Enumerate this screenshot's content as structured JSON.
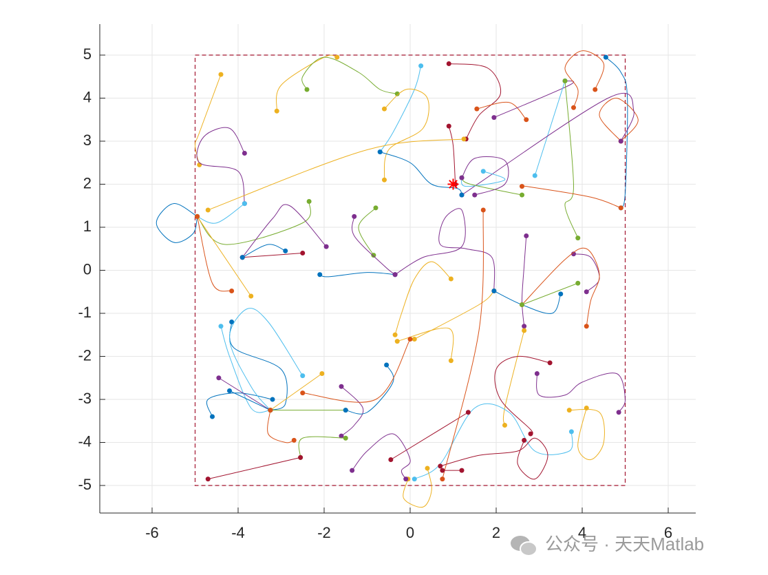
{
  "chart_data": {
    "type": "line",
    "xlim": [
      -7.216,
      6.64
    ],
    "ylim": [
      -5.64,
      5.72
    ],
    "xticks": [
      -6,
      -4,
      -2,
      0,
      2,
      4,
      6
    ],
    "yticks": [
      -5,
      -4,
      -3,
      -2,
      -1,
      0,
      1,
      2,
      3,
      4,
      5
    ],
    "grid": true,
    "boundary": {
      "x": [
        -5,
        5
      ],
      "y": [
        -5,
        5
      ],
      "color": "#A2142F"
    },
    "target": {
      "x": 1,
      "y": 2,
      "color": "#FF0000"
    },
    "watermark": "公众号 · 天天Matlab",
    "series": [
      {
        "color": "#EDB120",
        "x": [
          -4.4,
          -4.9,
          -5,
          -4.9
        ],
        "y": [
          4.55,
          3.2,
          2.9,
          2.45
        ]
      },
      {
        "color": "#7E2F8E",
        "x": [
          -3.85,
          -4.2,
          -4.8,
          -4.9,
          -4,
          -3.85
        ],
        "y": [
          2.72,
          3.3,
          3.1,
          2.5,
          2.3,
          1.55
        ]
      },
      {
        "color": "#EDB120",
        "x": [
          -3.1,
          -3,
          -2,
          -1.7
        ],
        "y": [
          3.7,
          4.3,
          4.95,
          4.95
        ]
      },
      {
        "color": "#77AC30",
        "x": [
          -2.4,
          -2.5,
          -2,
          -1.2,
          -0.7,
          -0.3
        ],
        "y": [
          4.2,
          4.5,
          4.95,
          4.6,
          4.2,
          4.1
        ]
      },
      {
        "color": "#4DBEEE",
        "x": [
          0.25,
          0.1,
          -0.4,
          -0.7
        ],
        "y": [
          4.75,
          4.2,
          3.2,
          2.75
        ]
      },
      {
        "color": "#A2142F",
        "x": [
          0.9,
          1.8,
          2.1,
          1.6,
          1.3
        ],
        "y": [
          4.8,
          4.7,
          4.1,
          3.6,
          3.05
        ]
      },
      {
        "color": "#EDB120",
        "x": [
          -0.6,
          -0.1,
          0.4,
          0.3,
          -0.5,
          -0.6
        ],
        "y": [
          3.75,
          4.2,
          4.0,
          3.3,
          2.8,
          2.1
        ]
      },
      {
        "color": "#D95319",
        "x": [
          1.55,
          2.3,
          2.7
        ],
        "y": [
          3.75,
          3.9,
          3.5
        ]
      },
      {
        "color": "#7E2F8E",
        "x": [
          1.95,
          3.7,
          3.6
        ],
        "y": [
          3.55,
          4.3,
          4.4
        ]
      },
      {
        "color": "#4DBEEE",
        "x": [
          3.6,
          2.9
        ],
        "y": [
          4.4,
          2.2
        ]
      },
      {
        "color": "#77AC30",
        "x": [
          3.6,
          3.8,
          3.6,
          3.9
        ],
        "y": [
          4.4,
          1.95,
          1.5,
          0.75
        ]
      },
      {
        "color": "#D95319",
        "x": [
          4.3,
          4.5,
          4,
          3.6,
          3.9,
          3.8
        ],
        "y": [
          4.2,
          4.8,
          5.1,
          4.7,
          4.2,
          3.78
        ]
      },
      {
        "color": "#0072BD",
        "x": [
          4.55,
          4.9,
          5.05,
          5,
          4.9
        ],
        "y": [
          4.95,
          4.6,
          4,
          1.8,
          1.45
        ]
      },
      {
        "color": "#D95319",
        "x": [
          4.9,
          4.4,
          4.8,
          5.3,
          4.9
        ],
        "y": [
          3.0,
          3.6,
          4,
          3.5,
          3.0
        ]
      },
      {
        "color": "#7E2F8E",
        "x": [
          1.2,
          4.6,
          5.2,
          4.9
        ],
        "y": [
          1.75,
          4.0,
          3.7,
          3.0
        ]
      },
      {
        "color": "#D95319",
        "x": [
          4.9,
          4.2,
          2.7,
          2.6
        ],
        "y": [
          1.45,
          1.7,
          1.95,
          1.95
        ]
      },
      {
        "color": "#4DBEEE",
        "x": [
          1.7,
          2.2,
          1.3,
          1.2
        ],
        "y": [
          2.3,
          2.1,
          1.95,
          2.15
        ]
      },
      {
        "color": "#77AC30",
        "x": [
          2.6,
          1.4,
          1.2
        ],
        "y": [
          1.75,
          2.0,
          2.15
        ]
      },
      {
        "color": "#7E2F8E",
        "x": [
          1.2,
          1.5,
          2.2,
          2.2,
          1.5
        ],
        "y": [
          2.15,
          2.6,
          2.55,
          2.0,
          1.75
        ]
      },
      {
        "color": "#A2142F",
        "x": [
          0.9,
          1.0,
          1.05
        ],
        "y": [
          3.35,
          2.9,
          2.0
        ]
      },
      {
        "color": "#EDB120",
        "x": [
          -4.7,
          -1,
          1.25
        ],
        "y": [
          1.4,
          2.8,
          3.05
        ]
      },
      {
        "color": "#0072BD",
        "x": [
          -0.7,
          0,
          0.5,
          1.1,
          1.2
        ],
        "y": [
          2.75,
          2.5,
          2.0,
          1.9,
          1.75
        ]
      },
      {
        "color": "#0072BD",
        "x": [
          -4.95,
          -5.5,
          -5.9,
          -5.5,
          -5.05,
          -4.95
        ],
        "y": [
          1.25,
          1.55,
          1.1,
          0.65,
          0.85,
          1.25
        ]
      },
      {
        "color": "#4DBEEE",
        "x": [
          -3.85,
          -4.5,
          -4.95
        ],
        "y": [
          1.55,
          1.1,
          1.25
        ]
      },
      {
        "color": "#77AC30",
        "x": [
          -2.35,
          -2.5,
          -4.3,
          -4.95
        ],
        "y": [
          1.6,
          1.1,
          0.6,
          1.25
        ]
      },
      {
        "color": "#EDB120",
        "x": [
          -4.95,
          -3.7
        ],
        "y": [
          1.25,
          -0.6
        ]
      },
      {
        "color": "#D95319",
        "x": [
          -4.95,
          -4.6,
          -4.15
        ],
        "y": [
          1.25,
          -0.3,
          -0.48
        ]
      },
      {
        "color": "#7E2F8E",
        "x": [
          -1.95,
          -2.8,
          -3.2,
          -3.9
        ],
        "y": [
          0.55,
          1.5,
          1.2,
          0.3
        ]
      },
      {
        "color": "#A2142F",
        "x": [
          -3.9,
          -2.5
        ],
        "y": [
          0.3,
          0.4
        ]
      },
      {
        "color": "#0072BD",
        "x": [
          -2.9,
          -3.3,
          -3.9
        ],
        "y": [
          0.45,
          0.6,
          0.3
        ]
      },
      {
        "color": "#77AC30",
        "x": [
          -0.8,
          -1.2,
          -0.85
        ],
        "y": [
          1.45,
          1.0,
          0.35
        ]
      },
      {
        "color": "#7E2F8E",
        "x": [
          -1.3,
          -1.3,
          -0.6,
          -0.35
        ],
        "y": [
          1.25,
          0.8,
          0.1,
          -0.1
        ]
      },
      {
        "color": "#0072BD",
        "x": [
          -2.1,
          -1.9,
          -1,
          -0.35
        ],
        "y": [
          -0.1,
          -0.15,
          -0.05,
          -0.1
        ]
      },
      {
        "color": "#7E2F8E",
        "x": [
          -0.35,
          0.3,
          1.2,
          1.2,
          0.8,
          0.7,
          1.3,
          1.9,
          1.95
        ],
        "y": [
          -0.1,
          0.3,
          0.55,
          1.4,
          1.2,
          0.6,
          0.5,
          0.3,
          -0.48
        ]
      },
      {
        "color": "#EDB120",
        "x": [
          1.95,
          1.6,
          0.1
        ],
        "y": [
          -0.48,
          -0.8,
          -1.6
        ]
      },
      {
        "color": "#EDB120",
        "x": [
          0.95,
          0.5,
          0.1,
          -0.2,
          -0.35
        ],
        "y": [
          -0.2,
          0.2,
          -0.2,
          -1.0,
          -1.5
        ]
      },
      {
        "color": "#EDB120",
        "x": [
          -0.3,
          0.9,
          0.95
        ],
        "y": [
          -1.65,
          -1.35,
          -2.1
        ]
      },
      {
        "color": "#7E2F8E",
        "x": [
          2.7,
          2.65,
          2.6,
          2.65
        ],
        "y": [
          0.8,
          0.1,
          -0.7,
          -1.3
        ]
      },
      {
        "color": "#7E2F8E",
        "x": [
          3.8,
          4.2,
          4.4,
          4.1
        ],
        "y": [
          0.38,
          0.3,
          -0.2,
          -0.5
        ]
      },
      {
        "color": "#D95319",
        "x": [
          4.1,
          4.2,
          4.4,
          4.1,
          3.6,
          2.6
        ],
        "y": [
          -1.3,
          -0.7,
          -0.1,
          0.5,
          0.25,
          -0.8
        ]
      },
      {
        "color": "#0072BD",
        "x": [
          1.95,
          2.6,
          3.3,
          3.5
        ],
        "y": [
          -0.48,
          -0.8,
          -1.0,
          -0.55
        ]
      },
      {
        "color": "#77AC30",
        "x": [
          3.9,
          2.6
        ],
        "y": [
          -0.3,
          -0.8
        ]
      },
      {
        "color": "#EDB120",
        "x": [
          2.65,
          2.2,
          2.2
        ],
        "y": [
          -1.4,
          -3.2,
          -3.6
        ]
      },
      {
        "color": "#7E2F8E",
        "x": [
          2.95,
          3,
          3.6,
          4,
          4.8,
          5,
          4.85
        ],
        "y": [
          -2.4,
          -2.9,
          -2.9,
          -2.6,
          -2.4,
          -3,
          -3.3
        ]
      },
      {
        "color": "#A2142F",
        "x": [
          3.25,
          2.5,
          2.0,
          2.1,
          2.8,
          2.8
        ],
        "y": [
          -2.15,
          -2,
          -2.3,
          -3.0,
          -3.7,
          -3.8
        ]
      },
      {
        "color": "#EDB120",
        "x": [
          3.7,
          4.4,
          4.5,
          4.2,
          3.9,
          4.1
        ],
        "y": [
          -3.25,
          -3.3,
          -4.0,
          -4.4,
          -4.1,
          -3.2
        ]
      },
      {
        "color": "#4DBEEE",
        "x": [
          0.1,
          0.7,
          1.5,
          2.3,
          2.9,
          3.7,
          3.75
        ],
        "y": [
          -4.85,
          -4.5,
          -3.2,
          -3.3,
          -4.2,
          -4.2,
          -3.75
        ]
      },
      {
        "color": "#A2142F",
        "x": [
          0.7,
          1.6,
          2.5,
          2.9,
          3.2,
          2.9,
          2.5,
          2.65
        ],
        "y": [
          -4.55,
          -4.3,
          -4.2,
          -3.9,
          -4.3,
          -4.85,
          -4.5,
          -3.95
        ]
      },
      {
        "color": "#A2142F",
        "x": [
          -0.45,
          1.35
        ],
        "y": [
          -4.4,
          -3.3
        ]
      },
      {
        "color": "#EDB120",
        "x": [
          -0.05,
          -0.15,
          0.3,
          0.5,
          0.4
        ],
        "y": [
          -4.85,
          -5.3,
          -5.5,
          -5.1,
          -4.6
        ]
      },
      {
        "color": "#7E2F8E",
        "x": [
          -1.35,
          -1,
          -0.4,
          0,
          -0.2,
          -0.1
        ],
        "y": [
          -4.65,
          -4.2,
          -3.8,
          -4.4,
          -4.65,
          -4.85
        ]
      },
      {
        "color": "#D95319",
        "x": [
          0.75,
          1.6,
          1.7
        ],
        "y": [
          -4.85,
          -1.4,
          1.4
        ]
      },
      {
        "color": "#A2142F",
        "x": [
          0.75,
          1.2
        ],
        "y": [
          -4.65,
          -4.65
        ]
      },
      {
        "color": "#0072BD",
        "x": [
          -4.6,
          -4.7,
          -4.0,
          -3.2
        ],
        "y": [
          -3.4,
          -3.0,
          -2.85,
          -3.0
        ]
      },
      {
        "color": "#0072BD",
        "x": [
          -4.15,
          -4.1,
          -3.0,
          -2.9,
          -3.25
        ],
        "y": [
          -1.2,
          -1.8,
          -2.3,
          -3.1,
          -3.25
        ]
      },
      {
        "color": "#4DBEEE",
        "x": [
          -4.4,
          -4.2,
          -3.7,
          -3.25
        ],
        "y": [
          -1.3,
          -2.0,
          -3.2,
          -3.25
        ]
      },
      {
        "color": "#4DBEEE",
        "x": [
          -2.5,
          -3.3,
          -3.8,
          -4.2,
          -3.7,
          -3.25
        ],
        "y": [
          -2.45,
          -1.2,
          -0.9,
          -1.6,
          -2.7,
          -3.25
        ]
      },
      {
        "color": "#7E2F8E",
        "x": [
          -4.45,
          -3.25
        ],
        "y": [
          -2.5,
          -3.25
        ]
      },
      {
        "color": "#0072BD",
        "x": [
          -4.2,
          -3.25
        ],
        "y": [
          -2.8,
          -3.25
        ]
      },
      {
        "color": "#EDB120",
        "x": [
          -3.25,
          -2.05
        ],
        "y": [
          -3.25,
          -2.4
        ]
      },
      {
        "color": "#7E2F8E",
        "x": [
          -1.6,
          -1.1,
          -1.3,
          -1.6
        ],
        "y": [
          -2.7,
          -3.2,
          -3.6,
          -3.85
        ]
      },
      {
        "color": "#77AC30",
        "x": [
          -3.25,
          -1.5
        ],
        "y": [
          -3.25,
          -3.25
        ]
      },
      {
        "color": "#D95319",
        "x": [
          -3.25,
          -3.3,
          -2.9,
          -2.7
        ],
        "y": [
          -3.25,
          -3.8,
          -4.0,
          -3.95
        ]
      },
      {
        "color": "#77AC30",
        "x": [
          -2.55,
          -2.5,
          -1.5
        ],
        "y": [
          -4.35,
          -3.9,
          -3.9
        ]
      },
      {
        "color": "#A2142F",
        "x": [
          -4.7,
          -2.55
        ],
        "y": [
          -4.85,
          -4.35
        ]
      },
      {
        "color": "#0072BD",
        "x": [
          -0.55,
          -0.4,
          -1,
          -1.5
        ],
        "y": [
          -2.2,
          -2.6,
          -3.3,
          -3.25
        ]
      },
      {
        "color": "#D95319",
        "x": [
          0,
          -0.8,
          -2.5
        ],
        "y": [
          -1.6,
          -3.0,
          -2.85
        ]
      }
    ]
  }
}
